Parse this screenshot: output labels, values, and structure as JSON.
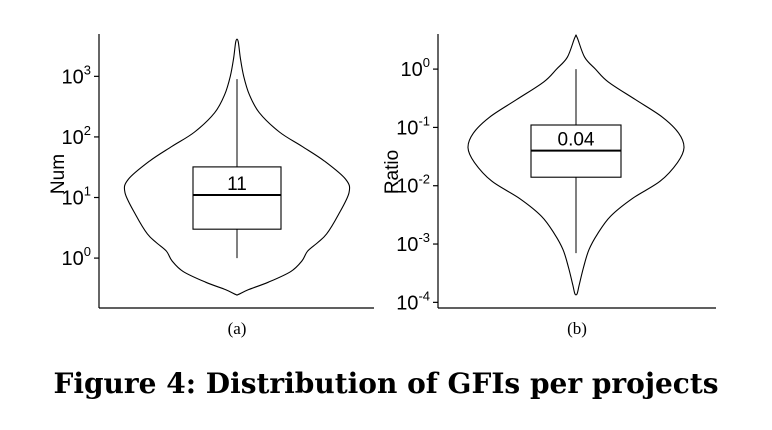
{
  "figure": {
    "caption": "Figure 4: Distribution of GFIs per projects"
  },
  "chart_data": [
    {
      "type": "violin",
      "panel_label": "(a)",
      "ylabel": "Num",
      "yscale": "log10",
      "ylim": [
        0.15,
        5000
      ],
      "yticks": [
        {
          "mantissa": "10",
          "exp": "0",
          "value": 1
        },
        {
          "mantissa": "10",
          "exp": "1",
          "value": 10
        },
        {
          "mantissa": "10",
          "exp": "2",
          "value": 100
        },
        {
          "mantissa": "10",
          "exp": "3",
          "value": 1000
        }
      ],
      "median_label": "11",
      "box": {
        "q1": 3,
        "median": 11,
        "q3": 32,
        "whisker_low": 1,
        "whisker_high": 900
      },
      "violin": {
        "max": 3800,
        "min": 0.25,
        "profile": [
          [
            0.25,
            0.01
          ],
          [
            0.3,
            0.1
          ],
          [
            0.4,
            0.28
          ],
          [
            0.6,
            0.48
          ],
          [
            0.9,
            0.58
          ],
          [
            1.3,
            0.63
          ],
          [
            1.8,
            0.72
          ],
          [
            2.5,
            0.8
          ],
          [
            5,
            0.9
          ],
          [
            12,
            1.0
          ],
          [
            20,
            0.97
          ],
          [
            40,
            0.78
          ],
          [
            70,
            0.58
          ],
          [
            120,
            0.38
          ],
          [
            250,
            0.2
          ],
          [
            500,
            0.11
          ],
          [
            1000,
            0.06
          ],
          [
            2000,
            0.03
          ],
          [
            3800,
            0.01
          ]
        ]
      }
    },
    {
      "type": "violin",
      "panel_label": "(b)",
      "ylabel": "Ratio",
      "yscale": "log10",
      "ylim": [
        8e-05,
        4
      ],
      "yticks": [
        {
          "mantissa": "10",
          "exp": "-4",
          "value": 0.0001
        },
        {
          "mantissa": "10",
          "exp": "-3",
          "value": 0.001
        },
        {
          "mantissa": "10",
          "exp": "-2",
          "value": 0.01
        },
        {
          "mantissa": "10",
          "exp": "-1",
          "value": 0.1
        },
        {
          "mantissa": "10",
          "exp": "0",
          "value": 1
        }
      ],
      "median_label": "0.04",
      "box": {
        "q1": 0.014,
        "median": 0.04,
        "q3": 0.11,
        "whisker_low": 0.0007,
        "whisker_high": 1
      },
      "violin": {
        "max": 3.5,
        "min": 0.00014,
        "profile": [
          [
            0.00014,
            0.01
          ],
          [
            0.0002,
            0.03
          ],
          [
            0.0004,
            0.07
          ],
          [
            0.0008,
            0.12
          ],
          [
            0.0015,
            0.2
          ],
          [
            0.003,
            0.32
          ],
          [
            0.006,
            0.52
          ],
          [
            0.012,
            0.78
          ],
          [
            0.025,
            0.94
          ],
          [
            0.045,
            1.0
          ],
          [
            0.08,
            0.95
          ],
          [
            0.15,
            0.8
          ],
          [
            0.3,
            0.55
          ],
          [
            0.6,
            0.3
          ],
          [
            1.0,
            0.18
          ],
          [
            1.6,
            0.08
          ],
          [
            3.5,
            0.01
          ]
        ]
      }
    }
  ]
}
